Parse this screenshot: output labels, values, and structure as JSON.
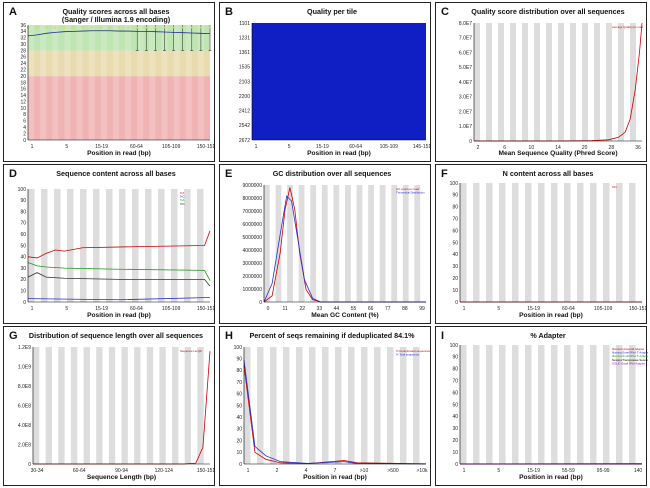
{
  "panels": [
    {
      "id": "A",
      "label": "A",
      "title": "Quality scores across all bases",
      "subtitle": "(Sanger / Illumina 1.9 encoding)",
      "xlabel": "Position in read (bp)",
      "chart_data": {
        "type": "boxplot",
        "title": "Quality scores across all bases",
        "subtitle": "(Sanger / Illumina 1.9 encoding)",
        "xlabel": "Position in read (bp)",
        "xticks": [
          "1",
          "5",
          "15-19",
          "60-64",
          "105-109",
          "150-151"
        ],
        "yticks": [
          "0",
          "2",
          "4",
          "6",
          "8",
          "10",
          "12",
          "14",
          "16",
          "18",
          "20",
          "22",
          "24",
          "26",
          "28",
          "30",
          "32",
          "34",
          "36"
        ],
        "ylim": [
          0,
          36
        ],
        "zones": [
          {
            "from": 0,
            "to": 20,
            "color": "#f0b3b3"
          },
          {
            "from": 20,
            "to": 28,
            "color": "#e9dbb0"
          },
          {
            "from": 28,
            "to": 36,
            "color": "#bfe5b3"
          }
        ],
        "x": [
          0,
          0.05,
          0.1,
          0.15,
          0.2,
          0.25,
          0.3,
          0.35,
          0.4,
          0.45,
          0.5,
          0.55,
          0.6,
          0.65,
          0.7,
          0.75,
          0.8,
          0.85,
          0.9,
          0.95,
          1
        ],
        "mean": [
          32.6,
          32.9,
          33.4,
          33.7,
          33.9,
          34.0,
          34.1,
          34.2,
          34.2,
          34.2,
          34.1,
          34.1,
          34.0,
          34.0,
          33.9,
          33.8,
          33.7,
          33.6,
          33.5,
          33.4,
          33.3
        ]
      }
    },
    {
      "id": "B",
      "label": "B",
      "title": "Quality per tile",
      "xlabel": "Position in read (bp)",
      "chart_data": {
        "type": "heatmap",
        "title": "Quality per tile",
        "xlabel": "Position in read (bp)",
        "xticks": [
          "1",
          "5",
          "15-19",
          "60-64",
          "105-109",
          "145-151"
        ],
        "yticks": [
          "2672",
          "2542",
          "2412",
          "2200",
          "2103",
          "1535",
          "1361",
          "1231",
          "1101"
        ],
        "color": "#0f1fc4"
      }
    },
    {
      "id": "C",
      "label": "C",
      "title": "Quality score distribution over all sequences",
      "xlabel": "Mean Sequence Quality (Phred Score)",
      "chart_data": {
        "type": "line",
        "title": "Quality score distribution over all sequences",
        "xlabel": "Mean Sequence Quality (Phred Score)",
        "xticks": [
          "2",
          "6",
          "10",
          "14",
          "20",
          "28",
          "36"
        ],
        "yticks": [
          "0",
          "1.0E7",
          "2.0E7",
          "3.0E7",
          "4.0E7",
          "5.0E7",
          "6.0E7",
          "7.0E7",
          "8.0E7"
        ],
        "ylim": [
          0,
          80000000
        ],
        "legend": [
          "Average Quality per read"
        ],
        "series": [
          {
            "name": "Average Quality per read",
            "color": "#cc0000",
            "points": [
              [
                0,
                0
              ],
              [
                0.5,
                0
              ],
              [
                0.7,
                200000
              ],
              [
                0.8,
                800000
              ],
              [
                0.86,
                2500000
              ],
              [
                0.9,
                6000000
              ],
              [
                0.93,
                15000000
              ],
              [
                0.96,
                35000000
              ],
              [
                0.985,
                60000000
              ],
              [
                1,
                80000000
              ]
            ]
          }
        ]
      }
    },
    {
      "id": "D",
      "label": "D",
      "title": "Sequence content across all bases",
      "xlabel": "Position in read (bp)",
      "chart_data": {
        "type": "line",
        "title": "Sequence content across all bases",
        "xlabel": "Position in read (bp)",
        "xticks": [
          "1",
          "5",
          "15-19",
          "60-64",
          "105-109",
          "150-151"
        ],
        "yticks": [
          "0",
          "10",
          "20",
          "30",
          "40",
          "50",
          "60",
          "70",
          "80",
          "90",
          "100"
        ],
        "ylim": [
          0,
          100
        ],
        "legend": [
          "%T",
          "%C",
          "%A",
          "%G"
        ],
        "series": [
          {
            "name": "red",
            "color": "#cc0000",
            "points": [
              [
                0,
                40
              ],
              [
                0.05,
                39
              ],
              [
                0.1,
                43
              ],
              [
                0.15,
                46
              ],
              [
                0.2,
                45
              ],
              [
                0.3,
                48
              ],
              [
                0.6,
                49
              ],
              [
                0.97,
                50
              ],
              [
                1,
                63
              ]
            ]
          },
          {
            "name": "green",
            "color": "#1a9a1a",
            "points": [
              [
                0,
                35
              ],
              [
                0.05,
                32
              ],
              [
                0.1,
                31
              ],
              [
                0.2,
                30
              ],
              [
                0.5,
                29
              ],
              [
                0.97,
                28
              ],
              [
                1,
                19
              ]
            ]
          },
          {
            "name": "black",
            "color": "#333333",
            "points": [
              [
                0,
                22
              ],
              [
                0.05,
                26
              ],
              [
                0.1,
                22
              ],
              [
                0.2,
                21
              ],
              [
                0.5,
                20
              ],
              [
                0.97,
                20
              ],
              [
                1,
                14
              ]
            ]
          },
          {
            "name": "blue",
            "color": "#2a2acc",
            "points": [
              [
                0,
                3
              ],
              [
                0.5,
                2
              ],
              [
                1,
                4
              ]
            ]
          }
        ]
      }
    },
    {
      "id": "E",
      "label": "E",
      "title": "GC distribution over all sequences",
      "xlabel": "Mean GC Content (%)",
      "chart_data": {
        "type": "line",
        "title": "GC distribution over all sequences",
        "xlabel": "Mean GC Content (%)",
        "xticks": [
          "0",
          "11",
          "22",
          "33",
          "44",
          "55",
          "66",
          "77",
          "88",
          "99"
        ],
        "yticks": [
          "0",
          "1000000",
          "2000000",
          "3000000",
          "4000000",
          "5000000",
          "6000000",
          "7000000",
          "8000000",
          "9000000"
        ],
        "ylim": [
          0,
          9500000
        ],
        "legend": [
          "GC count per read",
          "Theoretical Distribution"
        ],
        "series": [
          {
            "name": "GC count per read",
            "color": "#cc0000",
            "points": [
              [
                0,
                0
              ],
              [
                0.05,
                500000
              ],
              [
                0.1,
                4000000
              ],
              [
                0.13,
                7500000
              ],
              [
                0.16,
                9300000
              ],
              [
                0.19,
                7500000
              ],
              [
                0.22,
                4000000
              ],
              [
                0.26,
                1000000
              ],
              [
                0.3,
                200000
              ],
              [
                0.35,
                0
              ],
              [
                1,
                0
              ]
            ]
          },
          {
            "name": "Theoretical Distribution",
            "color": "#2a2acc",
            "points": [
              [
                0,
                0
              ],
              [
                0.05,
                1500000
              ],
              [
                0.1,
                5500000
              ],
              [
                0.14,
                8600000
              ],
              [
                0.17,
                8200000
              ],
              [
                0.21,
                5000000
              ],
              [
                0.25,
                1800000
              ],
              [
                0.3,
                300000
              ],
              [
                0.35,
                0
              ],
              [
                1,
                0
              ]
            ]
          }
        ]
      }
    },
    {
      "id": "F",
      "label": "F",
      "title": "N content across all bases",
      "xlabel": "Position in read (bp)",
      "chart_data": {
        "type": "line",
        "title": "N content across all bases",
        "xlabel": "Position in read (bp)",
        "xticks": [
          "1",
          "5",
          "15-19",
          "60-64",
          "105-109",
          "150-151"
        ],
        "yticks": [
          "0",
          "10",
          "20",
          "30",
          "40",
          "50",
          "60",
          "70",
          "80",
          "90",
          "100"
        ],
        "ylim": [
          0,
          100
        ],
        "legend": [
          "%N"
        ],
        "series": [
          {
            "name": "%N",
            "color": "#cc0000",
            "points": [
              [
                0,
                0
              ],
              [
                1,
                0
              ]
            ]
          }
        ]
      }
    },
    {
      "id": "G",
      "label": "G",
      "title": "Distribution of sequence length over all sequences",
      "xlabel": "Sequence Length (bp)",
      "chart_data": {
        "type": "line",
        "title": "Distribution of sequence length over all sequences",
        "xlabel": "Sequence Length (bp)",
        "xticks": [
          "30-34",
          "60-64",
          "90-94",
          "120-124",
          "150-151"
        ],
        "yticks": [
          "0",
          "2.0E8",
          "4.0E8",
          "6.0E8",
          "8.0E8",
          "1.0E9",
          "1.2E9"
        ],
        "ylim": [
          0,
          1400000000
        ],
        "legend": [
          "Sequence Length"
        ],
        "series": [
          {
            "name": "Sequence Length",
            "color": "#cc0000",
            "points": [
              [
                0,
                0
              ],
              [
                0.85,
                0
              ],
              [
                0.92,
                10000000
              ],
              [
                0.96,
                200000000
              ],
              [
                1,
                1350000000
              ]
            ]
          }
        ]
      }
    },
    {
      "id": "H",
      "label": "H",
      "title": "Percent of seqs remaining if deduplicated 84.1%",
      "xlabel": "Position in read (bp)",
      "chart_data": {
        "type": "line",
        "title": "Percent of seqs remaining if deduplicated 84.1%",
        "xlabel": "Position in read (bp)",
        "xticks": [
          "1",
          "2",
          "4",
          "7",
          ">10",
          ">500",
          ">10k"
        ],
        "yticks": [
          "0",
          "10",
          "20",
          "30",
          "40",
          "50",
          "60",
          "70",
          "80",
          "90",
          "100"
        ],
        "ylim": [
          0,
          100
        ],
        "legend": [
          "% Deduplicated sequences",
          "% Total sequences"
        ],
        "series": [
          {
            "name": "% Deduplicated sequences",
            "color": "#cc0000",
            "points": [
              [
                0,
                84
              ],
              [
                0.06,
                10
              ],
              [
                0.12,
                4
              ],
              [
                0.2,
                1
              ],
              [
                0.35,
                0.3
              ],
              [
                0.55,
                3
              ],
              [
                0.62,
                1
              ],
              [
                1,
                0.2
              ]
            ]
          },
          {
            "name": "% Total sequences",
            "color": "#2a2acc",
            "points": [
              [
                0,
                89
              ],
              [
                0.06,
                15
              ],
              [
                0.12,
                7
              ],
              [
                0.2,
                2
              ],
              [
                0.35,
                0.5
              ],
              [
                0.55,
                2
              ],
              [
                0.62,
                0.5
              ],
              [
                1,
                0
              ]
            ]
          }
        ]
      }
    },
    {
      "id": "I",
      "label": "I",
      "title": "% Adapter",
      "xlabel": "Position in read (bp)",
      "chart_data": {
        "type": "line",
        "title": "% Adapter",
        "xlabel": "Position in read (bp)",
        "xticks": [
          "1",
          "5",
          "15-19",
          "55-59",
          "95-99",
          "140"
        ],
        "yticks": [
          "0",
          "10",
          "20",
          "30",
          "40",
          "50",
          "60",
          "70",
          "80",
          "90",
          "100"
        ],
        "ylim": [
          0,
          100
        ],
        "legend": [
          "Illumina Universal Adapter",
          "Illumina Small RNA 3' Adapter",
          "Illumina Small RNA 5' Adapter",
          "Nextera Transposase Sequence",
          "SOLID Small RNA Adapter"
        ],
        "series": [
          {
            "name": "Illumina Universal Adapter",
            "color": "#cc0000",
            "points": [
              [
                0,
                0
              ],
              [
                1,
                0.3
              ]
            ]
          },
          {
            "name": "Illumina Small RNA 3' Adapter",
            "color": "#2a2acc",
            "points": [
              [
                0,
                0
              ],
              [
                1,
                0
              ]
            ]
          },
          {
            "name": "Illumina Small RNA 5' Adapter",
            "color": "#1a9a1a",
            "points": [
              [
                0,
                0
              ],
              [
                1,
                0
              ]
            ]
          },
          {
            "name": "Nextera Transposase Sequence",
            "color": "#000000",
            "points": [
              [
                0,
                0
              ],
              [
                1,
                0
              ]
            ]
          },
          {
            "name": "SOLID Small RNA Adapter",
            "color": "#aa00aa",
            "points": [
              [
                0,
                0
              ],
              [
                1,
                0
              ]
            ]
          }
        ]
      }
    }
  ],
  "legend_colors": {
    "C": [
      "#cc0000"
    ],
    "D": [
      "#cc0000",
      "#2a2acc",
      "#1a9a1a",
      "#333333"
    ],
    "E": [
      "#cc0000",
      "#2a2acc"
    ],
    "F": [
      "#cc0000"
    ],
    "G": [
      "#cc0000"
    ],
    "H": [
      "#cc0000",
      "#2a2acc"
    ],
    "I": [
      "#cc0000",
      "#2a2acc",
      "#1a9a1a",
      "#000000",
      "#aa00aa"
    ]
  }
}
